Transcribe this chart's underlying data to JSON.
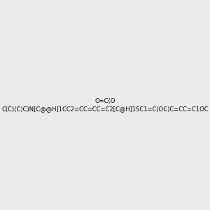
{
  "smiles": "O=C(O C(C)(C)C)N[C@@H]1CC2=CC=CC=C2[C@H]1SC1=C(OC)C=CC=C1OC",
  "img_size": [
    300,
    300
  ],
  "background": "#ebebeb",
  "title": ""
}
